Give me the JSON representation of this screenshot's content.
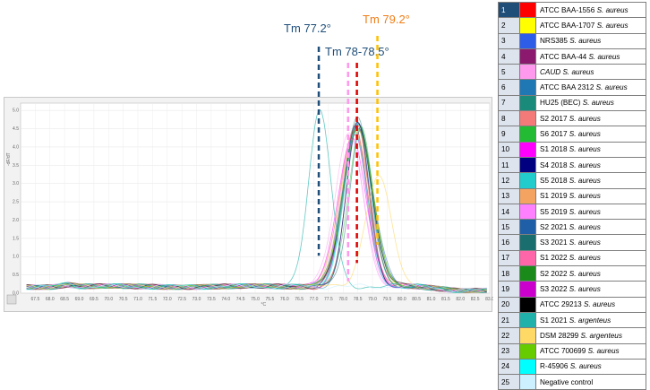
{
  "annotations": [
    {
      "text": "Tm 77.2°",
      "color": "#1f4e79",
      "x": 77.2,
      "dash_color": "#1f4e79"
    },
    {
      "text": "Tm 78-78.5°",
      "color": "#1f4e79",
      "x": 78.2,
      "dash_color": "#ff99ee"
    },
    {
      "text": "Tm 79.2°",
      "color": "#f07d18",
      "x": 79.2,
      "dash_color": "#ffc000"
    },
    {
      "dash_x": 78.5,
      "dash_color": "#e00000"
    }
  ],
  "chart_data": {
    "type": "line",
    "xlabel": "°C",
    "ylabel": "-dF/dT",
    "xlim": [
      67.0,
      83.0
    ],
    "ylim": [
      0,
      5.2
    ],
    "grid": true,
    "x_ticks": [
      "67.5",
      "68.0",
      "68.5",
      "69.0",
      "69.5",
      "70.0",
      "70.5",
      "71.0",
      "71.5",
      "72.0",
      "72.5",
      "73.0",
      "73.5",
      "74.0",
      "74.5",
      "75.0",
      "75.5",
      "76.0",
      "76.5",
      "77.0",
      "77.5",
      "78.0",
      "78.5",
      "79.0",
      "79.5",
      "80.0",
      "80.5",
      "81.0",
      "81.5",
      "82.0",
      "82.5",
      "83.0"
    ],
    "y_ticks": [
      "0.0",
      "0.5",
      "1.0",
      "1.5",
      "2.0",
      "2.5",
      "3.0",
      "3.5",
      "4.0",
      "4.5",
      "5.0"
    ],
    "series": [
      {
        "name": "ATCC BAA-1556 S. aureus",
        "color": "#ff0000",
        "peak_x": 78.5,
        "peak_y": 4.4
      },
      {
        "name": "ATCC BAA-1707 S.  aureus",
        "color": "#ffff00",
        "peak_x": 78.4,
        "peak_y": 4.3
      },
      {
        "name": "NRS385 S. aureus",
        "color": "#2e5de8",
        "peak_x": 78.5,
        "peak_y": 4.5
      },
      {
        "name": "ATCC BAA-44 S. aureus",
        "color": "#8b1a6e",
        "peak_x": 78.4,
        "peak_y": 4.4
      },
      {
        "name": "CAUD S. aureus",
        "color": "#ff99ee",
        "peak_x": 78.2,
        "peak_y": 4.2
      },
      {
        "name": "ATCC BAA 2312 S. aureus",
        "color": "#1f77b4",
        "peak_x": 78.5,
        "peak_y": 4.4
      },
      {
        "name": "HU25 (BEC) S. aureus",
        "color": "#1a8a7a",
        "peak_x": 78.5,
        "peak_y": 4.6
      },
      {
        "name": "S2 2017 S. aureus",
        "color": "#f47a7a",
        "peak_x": 78.4,
        "peak_y": 4.3
      },
      {
        "name": "S6 2017 S. aureus",
        "color": "#22bb33",
        "peak_x": 78.6,
        "peak_y": 4.4
      },
      {
        "name": "S1 2018 S. aureus",
        "color": "#ff00ff",
        "peak_x": 78.3,
        "peak_y": 4.1
      },
      {
        "name": "S4 2018 S. aureus",
        "color": "#000080",
        "peak_x": 78.5,
        "peak_y": 4.5
      },
      {
        "name": "S5 2018 S. aureus",
        "color": "#22cccc",
        "peak_x": 78.5,
        "peak_y": 4.4
      },
      {
        "name": "S1 2019 S. aureus",
        "color": "#f4a460",
        "peak_x": 78.4,
        "peak_y": 4.2
      },
      {
        "name": "S5 2019 S. aureus",
        "color": "#ff80ff",
        "peak_x": 78.3,
        "peak_y": 4.0
      },
      {
        "name": "S2 2021 S. aureus",
        "color": "#1f5fa8",
        "peak_x": 78.5,
        "peak_y": 4.4
      },
      {
        "name": "S3 2021 S. aureus",
        "color": "#1b6e6e",
        "peak_x": 78.6,
        "peak_y": 4.3
      },
      {
        "name": "S1 2022 S. aureus",
        "color": "#ff66aa",
        "peak_x": 78.4,
        "peak_y": 4.2
      },
      {
        "name": "S2 2022 S. aureus",
        "color": "#1a8a1a",
        "peak_x": 78.5,
        "peak_y": 4.4
      },
      {
        "name": "S3 2022 S. aureus",
        "color": "#cc00cc",
        "peak_x": 78.4,
        "peak_y": 4.1
      },
      {
        "name": "ATCC 29213 S. aureus",
        "color": "#000000",
        "peak_x": 78.5,
        "peak_y": 4.5
      },
      {
        "name": "S1 2021 S. argenteus",
        "color": "#20b2aa",
        "peak_x": 77.2,
        "peak_y": 4.8
      },
      {
        "name": "DSM 28299 S. argenteus",
        "color": "#ffd966",
        "peak_x": 79.2,
        "peak_y": 3.0
      },
      {
        "name": "ATCC 700699 S. aureus",
        "color": "#66cc00",
        "peak_x": 78.5,
        "peak_y": 4.3
      },
      {
        "name": "R-45906 S. aureus",
        "color": "#00ffff",
        "peak_x": 78.4,
        "peak_y": 4.2
      },
      {
        "name": "Negative control",
        "color": "#ccf0ff",
        "peak_x": 78.5,
        "peak_y": 0.0
      }
    ]
  },
  "legend": [
    {
      "num": "1",
      "color": "#ff0000",
      "pre": "ATCC BAA-1556 ",
      "species": "S. aureus"
    },
    {
      "num": "2",
      "color": "#ffff00",
      "pre": "ATCC BAA-1707 ",
      "species": "S.  aureus"
    },
    {
      "num": "3",
      "color": "#2e5de8",
      "pre": "NRS385 ",
      "species": "S. aureus"
    },
    {
      "num": "4",
      "color": "#8b1a6e",
      "pre": " ATCC BAA-44 ",
      "species": "S. aureus"
    },
    {
      "num": "5",
      "color": "#ff99ee",
      "pre": "",
      "species": "CAUD S. aureus"
    },
    {
      "num": "6",
      "color": "#1f77b4",
      "pre": "ATCC BAA 2312 ",
      "species": "S. aureus"
    },
    {
      "num": "7",
      "color": "#1a8a7a",
      "pre": "HU25 (BEC) ",
      "species": "S. aureus"
    },
    {
      "num": "8",
      "color": "#f47a7a",
      "pre": "S2 2017 ",
      "species": "S. aureus"
    },
    {
      "num": "9",
      "color": "#22bb33",
      "pre": "S6 2017 ",
      "species": "S. aureus"
    },
    {
      "num": "10",
      "color": "#ff00ff",
      "pre": "S1 2018 ",
      "species": "S. aureus"
    },
    {
      "num": "11",
      "color": "#000080",
      "pre": "S4 2018 ",
      "species": "S. aureus"
    },
    {
      "num": "12",
      "color": "#22cccc",
      "pre": "S5 2018 ",
      "species": "S. aureus"
    },
    {
      "num": "13",
      "color": "#f4a460",
      "pre": "S1 2019 ",
      "species": "S. aureus"
    },
    {
      "num": "14",
      "color": "#ff80ff",
      "pre": "S5 2019 ",
      "species": "S. aureus"
    },
    {
      "num": "15",
      "color": "#1f5fa8",
      "pre": "S2 2021 ",
      "species": "S. aureus"
    },
    {
      "num": "16",
      "color": "#1b6e6e",
      "pre": "S3 2021 ",
      "species": "S. aureus"
    },
    {
      "num": "17",
      "color": "#ff66aa",
      "pre": "S1 2022 ",
      "species": "S. aureus"
    },
    {
      "num": "18",
      "color": "#1a8a1a",
      "pre": "S2 2022 ",
      "species": "S. aureus"
    },
    {
      "num": "19",
      "color": "#cc00cc",
      "pre": "S3 2022 ",
      "species": "S. aureus"
    },
    {
      "num": "20",
      "color": "#000000",
      "pre": "ATCC 29213 ",
      "species": "S. aureus"
    },
    {
      "num": "21",
      "color": "#20b2aa",
      "pre": "S1 2021 ",
      "species": "S. argenteus"
    },
    {
      "num": "22",
      "color": "#ffd966",
      "pre": "DSM 28299 ",
      "species": "S. argenteus"
    },
    {
      "num": "23",
      "color": "#66cc00",
      "pre": "ATCC 700699 ",
      "species": "S. aureus"
    },
    {
      "num": "24",
      "color": "#00ffff",
      "pre": "R-45906 ",
      "species": "S. aureus"
    },
    {
      "num": "25",
      "color": "#ccf0ff",
      "pre": "Negative control",
      "species": ""
    }
  ]
}
